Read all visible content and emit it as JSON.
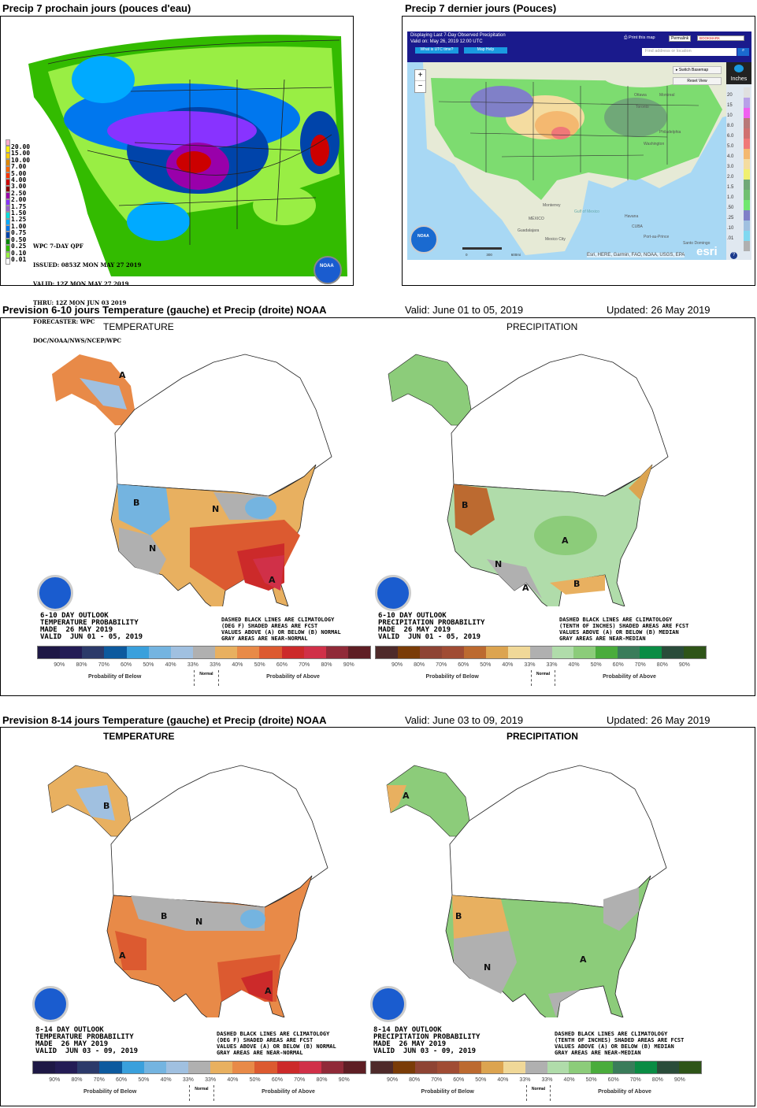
{
  "top_left": {
    "title": "Precip 7 prochain jours (pouces d'eau)",
    "legend_values": [
      "20.00",
      "15.00",
      "10.00",
      "7.00",
      "5.00",
      "4.00",
      "3.00",
      "2.50",
      "2.00",
      "1.75",
      "1.50",
      "1.25",
      "1.00",
      "0.75",
      "0.50",
      "0.25",
      "0.10",
      "0.01"
    ],
    "legend_colors": [
      "#ffaacc",
      "#ffee00",
      "#ffcc00",
      "#dd8800",
      "#ff6600",
      "#ff3300",
      "#cc0000",
      "#880000",
      "#9900aa",
      "#8833ff",
      "#9966cc",
      "#00dddd",
      "#00aaff",
      "#0077ee",
      "#0044aa",
      "#008800",
      "#33bb00",
      "#99ee44",
      "#ffffff"
    ],
    "info": [
      "WPC 7-DAY QPF",
      "ISSUED: 0853Z MON MAY 27 2019",
      "VALID: 12Z MON MAY 27 2019",
      "THRU: 12Z MON JUN 03 2019",
      "FORECASTER: WPC",
      "DOC/NOAA/NWS/NCEP/WPC"
    ]
  },
  "top_right": {
    "title": "Precip 7 dernier jours (Pouces)",
    "banner_line1": "Displaying Last 7-Day Observed Precipitation",
    "banner_line2": "Valid on: May 26, 2019 12:00 UTC",
    "utc_button": "What is UTC time?",
    "help_button": "Map Help",
    "print_label": "Print this map",
    "permalink": "Permalink",
    "bookmark": "BOOKMARK",
    "search_placeholder": "Find address or location",
    "switch_basemap": "Switch Basemap",
    "reset_view": "Reset View",
    "zoom_in": "+",
    "zoom_out": "−",
    "units": "Inches",
    "scale_values": [
      "20",
      "15",
      "10",
      "8.0",
      "6.0",
      "5.0",
      "4.0",
      "3.0",
      "2.0",
      "1.5",
      "1.0",
      ".50",
      ".25",
      ".10",
      ".01"
    ],
    "scale_colors": [
      "#e0e0e0",
      "#b8a0e8",
      "#f060f0",
      "#b87878",
      "#d07070",
      "#f07878",
      "#f4b870",
      "#f4dca0",
      "#f0f070",
      "#70a878",
      "#70c070",
      "#70e870",
      "#8080c8",
      "#a0c0e0",
      "#80d8f0",
      "#b0b0b0"
    ],
    "places": [
      "MÉXICO",
      "Guadalajara",
      "Mexico City",
      "Gulf of Mexico",
      "Havana",
      "CUBA",
      "Port-au-Prince",
      "Santo Domingo",
      "Ottawa",
      "Montreal",
      "Toronto",
      "Philadelphia",
      "Washington",
      "Monterrey"
    ],
    "scale_labels": [
      "0",
      "300",
      "600mi"
    ],
    "attribution": "Esri, HERE, Garmin, FAO, NOAA, USGS, EPA",
    "esri": "esri",
    "help": "?"
  },
  "sec1": {
    "title": "Prevision 6-10 jours Temperature (gauche) et Precip (droite) NOAA",
    "valid": "Valid: June 01 to 05, 2019",
    "updated": "Updated: 26 May 2019",
    "temp_label": "TEMPERATURE",
    "precip_label": "PRECIPITATION",
    "temp_info": "6-10 DAY OUTLOOK\nTEMPERATURE PROBABILITY\nMADE  26 MAY 2019\nVALID  JUN 01 - 05, 2019",
    "precip_info": "6-10 DAY OUTLOOK\nPRECIPITATION PROBABILITY\nMADE  26 MAY 2019\nVALID  JUN 01 - 05, 2019",
    "temp_note": "DASHED BLACK LINES ARE CLIMATOLOGY\n(DEG F) SHADED AREAS ARE FCST\nVALUES ABOVE (A) OR BELOW (B) NORMAL\nGRAY AREAS ARE NEAR-NORMAL",
    "precip_note": "DASHED BLACK LINES ARE CLIMATOLOGY\n(TENTH OF INCHES) SHADED AREAS ARE FCST\nVALUES ABOVE (A) OR BELOW (B) MEDIAN\nGRAY AREAS ARE NEAR-MEDIAN"
  },
  "sec2": {
    "title": "Prevision 8-14 jours Temperature (gauche) et Precip (droite) NOAA",
    "valid": "Valid: June 03 to 09, 2019",
    "updated": "Updated: 26 May 2019",
    "temp_label": "TEMPERATURE",
    "precip_label": "PRECIPITATION",
    "temp_info": "8-14 DAY OUTLOOK\nTEMPERATURE PROBABILITY\nMADE  26 MAY 2019\nVALID  JUN 03 - 09, 2019",
    "precip_info": "8-14 DAY OUTLOOK\nPRECIPITATION PROBABILITY\nMADE  26 MAY 2019\nVALID  JUN 03 - 09, 2019",
    "temp_note": "DASHED BLACK LINES ARE CLIMATOLOGY\n(DEG F) SHADED AREAS ARE FCST\nVALUES ABOVE (A) OR BELOW (B) NORMAL\nGRAY AREAS ARE NEAR-NORMAL",
    "precip_note": "DASHED BLACK LINES ARE CLIMATOLOGY\n(TENTH OF INCHES) SHADED AREAS ARE FCST\nVALUES ABOVE (A) OR BELOW (B) MEDIAN\nGRAY AREAS ARE NEAR-MEDIAN"
  },
  "legend": {
    "ticks": [
      "90%",
      "80%",
      "70%",
      "60%",
      "50%",
      "40%",
      "33%",
      "33%",
      "40%",
      "50%",
      "60%",
      "70%",
      "80%",
      "90%"
    ],
    "below": "Probability of Below",
    "above": "Probability of Above",
    "normal": "Normal",
    "temp_colors": [
      "#1e1845",
      "#241c55",
      "#2c3a6a",
      "#0d5a9e",
      "#3aa0dc",
      "#74b4e0",
      "#a0c0e0",
      "#b0b0b0",
      "#e8b060",
      "#e88a48",
      "#dc5a30",
      "#cc2a2a",
      "#d03048",
      "#902a38",
      "#5e1e24"
    ],
    "precip_colors": [
      "#4e2a2a",
      "#7a3c08",
      "#8e4434",
      "#a04c34",
      "#bc6a30",
      "#dca450",
      "#f0d898",
      "#b0b0b0",
      "#b0dcaa",
      "#8ccc7a",
      "#4aac3c",
      "#3a7c5a",
      "#0a8c44",
      "#2a4c3a",
      "#2e5418"
    ]
  },
  "map_letters": {
    "A": "A",
    "B": "B",
    "N": "N"
  }
}
